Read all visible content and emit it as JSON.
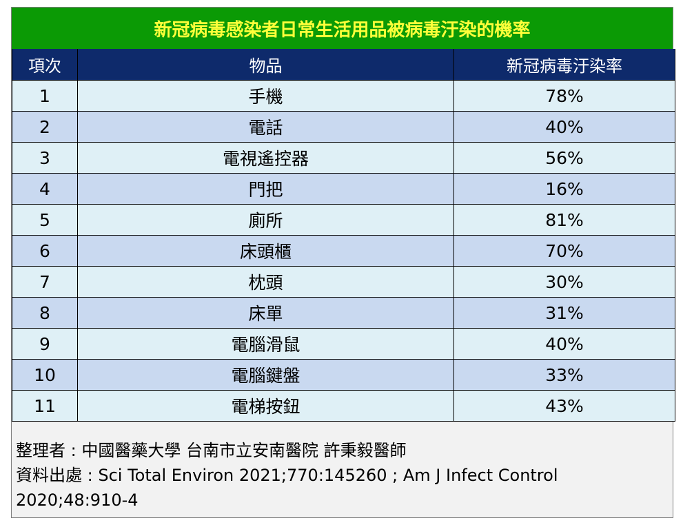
{
  "title": "新冠病毒感染者日常生活用品被病毒汙染的機率",
  "headers": {
    "index": "項次",
    "item": "物品",
    "rate": "新冠病毒汙染率"
  },
  "rows": [
    {
      "index": "1",
      "item": "手機",
      "rate": "78%"
    },
    {
      "index": "2",
      "item": "電話",
      "rate": "40%"
    },
    {
      "index": "3",
      "item": "電視遙控器",
      "rate": "56%"
    },
    {
      "index": "4",
      "item": "門把",
      "rate": "16%"
    },
    {
      "index": "5",
      "item": "廁所",
      "rate": "81%"
    },
    {
      "index": "6",
      "item": "床頭櫃",
      "rate": "70%"
    },
    {
      "index": "7",
      "item": "枕頭",
      "rate": "30%"
    },
    {
      "index": "8",
      "item": "床單",
      "rate": "31%"
    },
    {
      "index": "9",
      "item": "電腦滑鼠",
      "rate": "40%"
    },
    {
      "index": "10",
      "item": "電腦鍵盤",
      "rate": "33%"
    },
    {
      "index": "11",
      "item": "電梯按鈕",
      "rate": "43%"
    }
  ],
  "footer": {
    "compiler": "整理者 : 中國醫藥大學 台南市立安南醫院  許秉毅醫師",
    "source_line1": "資料出處 : Sci Total Environ 2021;770:145260 ; Am J Infect Control",
    "source_line2": "2020;48:910-4"
  },
  "colors": {
    "title_bg": "#0b9a05",
    "title_text": "#ffff3a",
    "header_bg": "#0e2a6b",
    "row_light": "#dff0f6",
    "row_blue": "#c9d9f0",
    "footer_bg": "#f2f2f2"
  }
}
